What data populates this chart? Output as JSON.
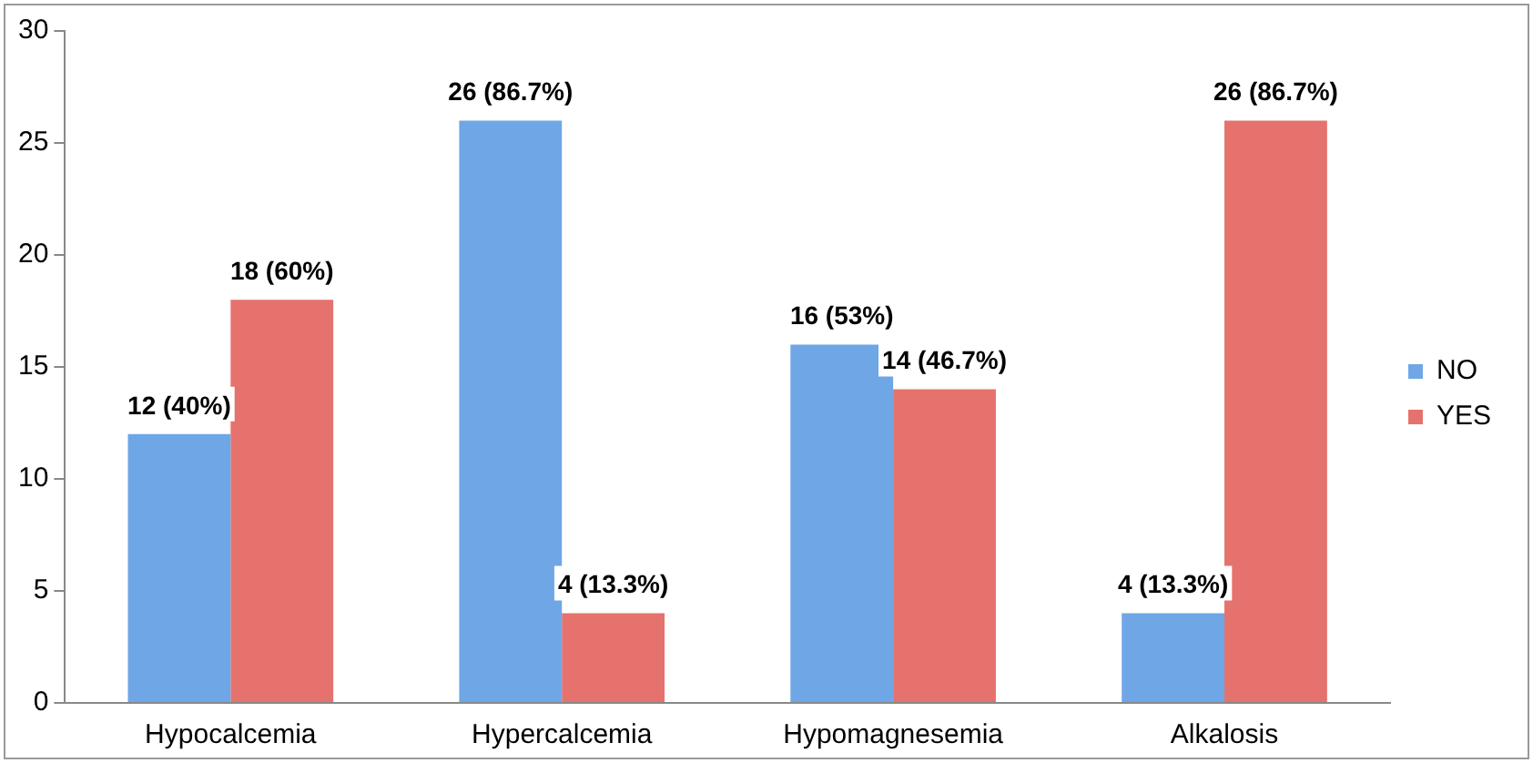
{
  "chart_data": {
    "type": "bar",
    "categories": [
      "Hypocalcemia",
      "Hypercalcemia",
      "Hypomagnesemia",
      "Alkalosis"
    ],
    "series": [
      {
        "name": "NO",
        "color": "#6fa6e6",
        "values": [
          12,
          26,
          16,
          4
        ],
        "value_labels": [
          "12 (40%)",
          "26 (86.7%)",
          "16 (53%)",
          "4 (13.3%)"
        ]
      },
      {
        "name": "YES",
        "color": "#e5726c",
        "values": [
          18,
          4,
          14,
          26
        ],
        "value_labels": [
          "18 (60%)",
          "4 (13.3%)",
          "14 (46.7%)",
          "26 (86.7%)"
        ]
      }
    ],
    "ylim": [
      0,
      30
    ],
    "yticks": [
      0,
      5,
      10,
      15,
      20,
      25,
      30
    ],
    "grid": false,
    "legend": "right"
  }
}
